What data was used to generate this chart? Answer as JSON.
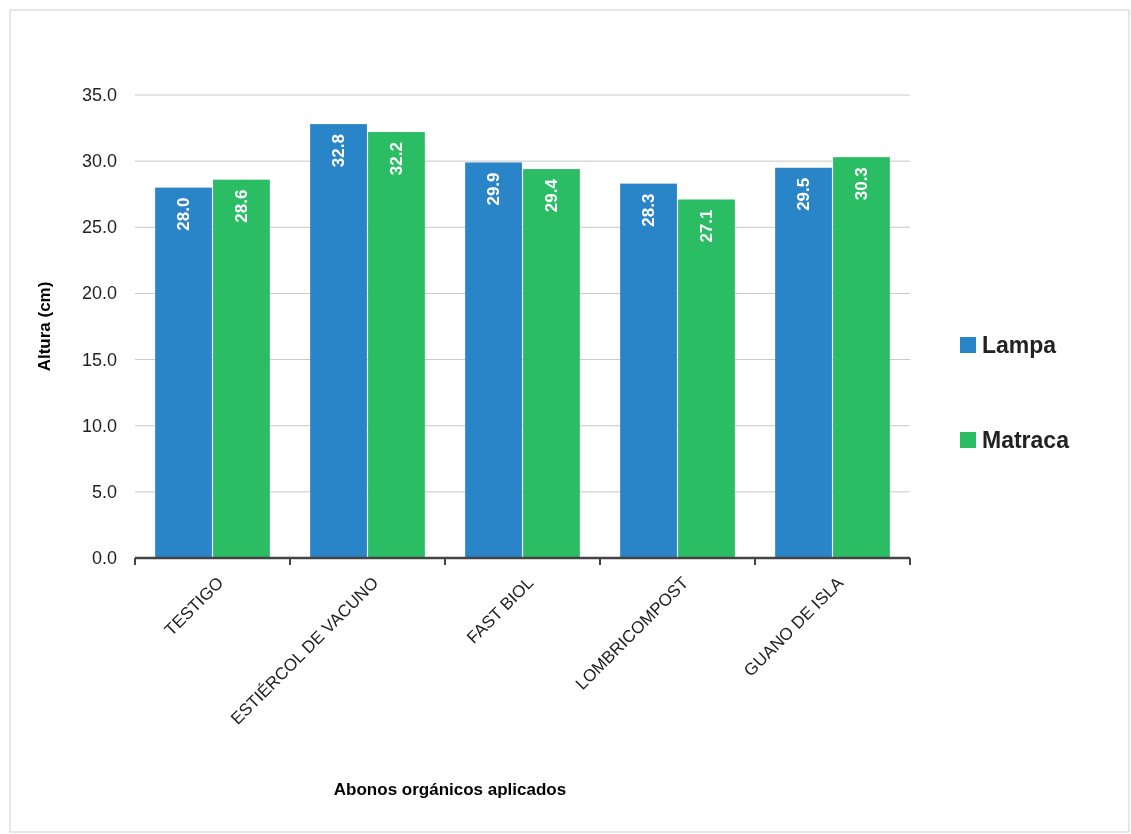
{
  "chart_data": {
    "type": "bar",
    "xlabel": "Abonos orgánicos aplicados",
    "ylabel": "Altura (cm)",
    "categories": [
      "TESTIGO",
      "ESTIÉRCOL DE VACUNO",
      "FAST BIOL",
      "LOMBRICOMPOST",
      "GUANO DE ISLA"
    ],
    "series": [
      {
        "name": "Lampa",
        "color": "#2a84c8",
        "values": [
          28.0,
          32.8,
          29.9,
          28.3,
          29.5
        ],
        "value_labels": [
          "28.0",
          "32.8",
          "29.9",
          "28.3",
          "29.5"
        ]
      },
      {
        "name": "Matraca",
        "color": "#2bbd64",
        "values": [
          28.6,
          32.2,
          29.4,
          27.1,
          30.3
        ],
        "value_labels": [
          "28.6",
          "32.2",
          "29.4",
          "27.1",
          "30.3"
        ]
      }
    ],
    "ylim": [
      0,
      35
    ],
    "yticks": [
      {
        "value": 0,
        "label": "0.0"
      },
      {
        "value": 5,
        "label": "5.0"
      },
      {
        "value": 10,
        "label": "10.0"
      },
      {
        "value": 15,
        "label": "15.0"
      },
      {
        "value": 20,
        "label": "20.0"
      },
      {
        "value": 25,
        "label": "25.0"
      },
      {
        "value": 30,
        "label": "30.0"
      },
      {
        "value": 35,
        "label": "35.0"
      }
    ],
    "grid": "y",
    "legend": "right"
  }
}
